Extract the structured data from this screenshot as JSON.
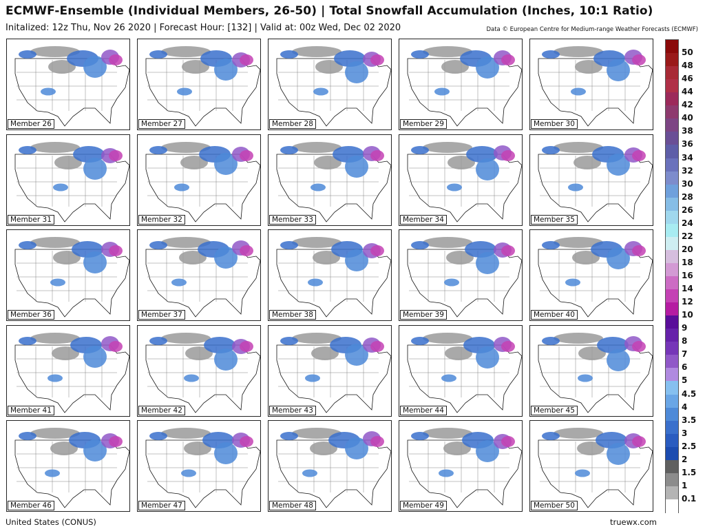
{
  "title": "ECMWF-Ensemble (Individual Members, 26-50) | Total Snowfall Accumulation (Inches, 10:1 Ratio)",
  "subtitle": "Initalized: 12z Thu, Nov 26 2020  |  Forecast Hour: [132]  |  Valid at: 00z Wed, Dec 02 2020",
  "credit": "Data © European Centre for Medium-range Weather Forecasts (ECMWF)",
  "region": "United States (CONUS)",
  "brand": "truewx.com",
  "members": [
    "Member 26",
    "Member 27",
    "Member 28",
    "Member 29",
    "Member 30",
    "Member 31",
    "Member 32",
    "Member 33",
    "Member 34",
    "Member 35",
    "Member 36",
    "Member 37",
    "Member 38",
    "Member 39",
    "Member 40",
    "Member 41",
    "Member 42",
    "Member 43",
    "Member 44",
    "Member 45",
    "Member 46",
    "Member 47",
    "Member 48",
    "Member 49",
    "Member 50"
  ],
  "legend": {
    "ticks": [
      "50",
      "48",
      "46",
      "44",
      "42",
      "40",
      "38",
      "36",
      "34",
      "32",
      "30",
      "28",
      "26",
      "24",
      "22",
      "20",
      "18",
      "16",
      "14",
      "12",
      "10",
      "9",
      "8",
      "7",
      "6",
      "5",
      "4.5",
      "4",
      "3.5",
      "3",
      "2.5",
      "2",
      "1.5",
      "1",
      "0.1"
    ],
    "colors": [
      "#8b0a0a",
      "#9a1a1a",
      "#a82a36",
      "#b03048",
      "#9c2a5a",
      "#8e3a6e",
      "#7d4584",
      "#6a4f96",
      "#5e5ea8",
      "#6a72bc",
      "#7d8ccc",
      "#6fa0dc",
      "#86bde6",
      "#a0d8ee",
      "#a8ecf2",
      "#cfeef2",
      "#d6bede",
      "#d39ad4",
      "#cc6cc4",
      "#c442b4",
      "#b51ca2",
      "#5a0e9a",
      "#6622aa",
      "#7636b8",
      "#9058c8",
      "#b08ae0",
      "#86c0f0",
      "#6aa6e6",
      "#4e8ad8",
      "#3a70cc",
      "#2a5cc0",
      "#1c4cb0",
      "#606060",
      "#8c8c8c",
      "#b4b4b4",
      "#ffffff"
    ]
  }
}
